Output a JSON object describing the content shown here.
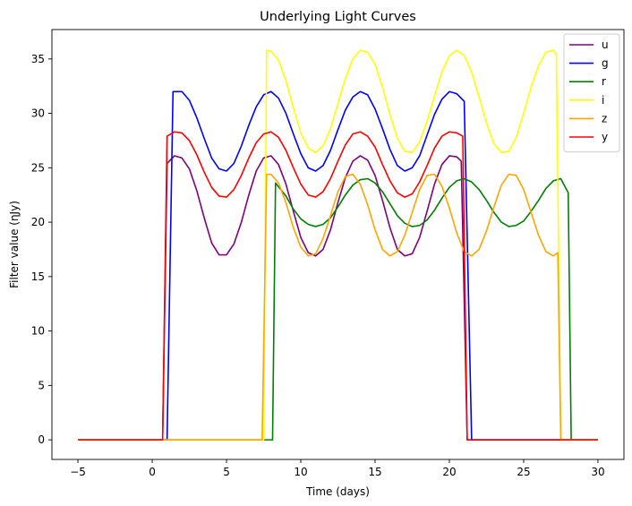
{
  "chart_data": {
    "type": "line",
    "title": "Underlying Light Curves",
    "xlabel": "Time (days)",
    "ylabel": "Filter value (ηJy)",
    "xlim": [
      -6.75,
      31.75
    ],
    "ylim": [
      -1.8,
      37.7
    ],
    "xticks": [
      -5,
      0,
      5,
      10,
      15,
      20,
      25,
      30
    ],
    "yticks": [
      0,
      5,
      10,
      15,
      20,
      25,
      30,
      35
    ],
    "grid": false,
    "legend_position": "top-right",
    "series": [
      {
        "name": "u",
        "color": "#800080",
        "points": [
          [
            -5,
            0
          ],
          [
            0.7,
            0
          ],
          [
            1.0,
            25.4
          ],
          [
            1.5,
            26.1
          ],
          [
            2.0,
            25.9
          ],
          [
            2.5,
            24.9
          ],
          [
            3.0,
            22.9
          ],
          [
            3.5,
            20.4
          ],
          [
            4.0,
            18.1
          ],
          [
            4.5,
            17.0
          ],
          [
            5.0,
            17.0
          ],
          [
            5.5,
            18.0
          ],
          [
            6.0,
            20.0
          ],
          [
            6.5,
            22.5
          ],
          [
            7.0,
            24.7
          ],
          [
            7.5,
            25.9
          ],
          [
            8.0,
            26.1
          ],
          [
            8.5,
            25.3
          ],
          [
            9.0,
            23.5
          ],
          [
            9.5,
            21.0
          ],
          [
            10.0,
            18.6
          ],
          [
            10.5,
            17.2
          ],
          [
            11.0,
            16.9
          ],
          [
            11.5,
            17.5
          ],
          [
            12.0,
            19.3
          ],
          [
            12.5,
            21.8
          ],
          [
            13.0,
            24.1
          ],
          [
            13.5,
            25.6
          ],
          [
            14.0,
            26.1
          ],
          [
            14.5,
            25.7
          ],
          [
            15.0,
            24.3
          ],
          [
            15.5,
            22.0
          ],
          [
            16.0,
            19.5
          ],
          [
            16.5,
            17.5
          ],
          [
            17.0,
            16.9
          ],
          [
            17.5,
            17.1
          ],
          [
            18.0,
            18.6
          ],
          [
            18.5,
            21.0
          ],
          [
            19.0,
            23.5
          ],
          [
            19.5,
            25.3
          ],
          [
            20.0,
            26.1
          ],
          [
            20.5,
            26.0
          ],
          [
            20.8,
            25.6
          ],
          [
            21.2,
            0
          ],
          [
            30,
            0
          ]
        ]
      },
      {
        "name": "g",
        "color": "#0000ff",
        "points": [
          [
            -5,
            0
          ],
          [
            1.0,
            0
          ],
          [
            1.4,
            32.0
          ],
          [
            2.0,
            32.0
          ],
          [
            2.5,
            31.2
          ],
          [
            3.0,
            29.6
          ],
          [
            3.5,
            27.7
          ],
          [
            4.0,
            25.9
          ],
          [
            4.5,
            24.9
          ],
          [
            5.0,
            24.7
          ],
          [
            5.5,
            25.4
          ],
          [
            6.0,
            27.0
          ],
          [
            6.5,
            28.9
          ],
          [
            7.0,
            30.6
          ],
          [
            7.5,
            31.7
          ],
          [
            8.0,
            32.0
          ],
          [
            8.5,
            31.4
          ],
          [
            9.0,
            30.0
          ],
          [
            9.5,
            28.1
          ],
          [
            10.0,
            26.3
          ],
          [
            10.5,
            25.0
          ],
          [
            11.0,
            24.7
          ],
          [
            11.5,
            25.2
          ],
          [
            12.0,
            26.6
          ],
          [
            12.5,
            28.5
          ],
          [
            13.0,
            30.3
          ],
          [
            13.5,
            31.5
          ],
          [
            14.0,
            32.0
          ],
          [
            14.5,
            31.7
          ],
          [
            15.0,
            30.4
          ],
          [
            15.5,
            28.6
          ],
          [
            16.0,
            26.7
          ],
          [
            16.5,
            25.2
          ],
          [
            17.0,
            24.7
          ],
          [
            17.5,
            25.0
          ],
          [
            18.0,
            26.1
          ],
          [
            18.5,
            28.0
          ],
          [
            19.0,
            29.9
          ],
          [
            19.5,
            31.3
          ],
          [
            20.0,
            32.0
          ],
          [
            20.5,
            31.8
          ],
          [
            21.0,
            31.1
          ],
          [
            21.5,
            0
          ],
          [
            30,
            0
          ]
        ]
      },
      {
        "name": "r",
        "color": "#008000",
        "points": [
          [
            -5,
            0
          ],
          [
            8.1,
            0
          ],
          [
            8.3,
            23.6
          ],
          [
            9.0,
            22.4
          ],
          [
            9.5,
            21.2
          ],
          [
            10.0,
            20.3
          ],
          [
            10.5,
            19.8
          ],
          [
            11.0,
            19.6
          ],
          [
            11.5,
            19.8
          ],
          [
            12.0,
            20.4
          ],
          [
            12.5,
            21.4
          ],
          [
            13.0,
            22.5
          ],
          [
            13.5,
            23.4
          ],
          [
            14.0,
            23.9
          ],
          [
            14.5,
            24.0
          ],
          [
            15.0,
            23.6
          ],
          [
            15.5,
            22.8
          ],
          [
            16.0,
            21.7
          ],
          [
            16.5,
            20.6
          ],
          [
            17.0,
            19.9
          ],
          [
            17.5,
            19.6
          ],
          [
            18.0,
            19.7
          ],
          [
            18.5,
            20.2
          ],
          [
            19.0,
            21.1
          ],
          [
            19.5,
            22.2
          ],
          [
            20.0,
            23.2
          ],
          [
            20.5,
            23.8
          ],
          [
            21.0,
            24.0
          ],
          [
            21.5,
            23.7
          ],
          [
            22.0,
            23.0
          ],
          [
            22.5,
            22.0
          ],
          [
            23.0,
            20.9
          ],
          [
            23.5,
            20.0
          ],
          [
            24.0,
            19.6
          ],
          [
            24.5,
            19.7
          ],
          [
            25.0,
            20.1
          ],
          [
            25.5,
            21.0
          ],
          [
            26.0,
            22.0
          ],
          [
            26.5,
            23.1
          ],
          [
            27.0,
            23.8
          ],
          [
            27.5,
            24.0
          ],
          [
            28.0,
            22.7
          ],
          [
            28.2,
            0
          ],
          [
            30,
            0
          ]
        ]
      },
      {
        "name": "i",
        "color": "#ffff00",
        "points": [
          [
            -5,
            0
          ],
          [
            7.5,
            0
          ],
          [
            7.7,
            35.8
          ],
          [
            8.0,
            35.7
          ],
          [
            8.5,
            34.9
          ],
          [
            9.0,
            33.0
          ],
          [
            9.5,
            30.5
          ],
          [
            10.0,
            28.2
          ],
          [
            10.5,
            26.8
          ],
          [
            11.0,
            26.4
          ],
          [
            11.5,
            27.0
          ],
          [
            12.0,
            28.6
          ],
          [
            12.5,
            30.9
          ],
          [
            13.0,
            33.2
          ],
          [
            13.5,
            35.0
          ],
          [
            14.0,
            35.8
          ],
          [
            14.5,
            35.6
          ],
          [
            15.0,
            34.5
          ],
          [
            15.5,
            32.4
          ],
          [
            16.0,
            29.9
          ],
          [
            16.5,
            27.7
          ],
          [
            17.0,
            26.5
          ],
          [
            17.5,
            26.4
          ],
          [
            18.0,
            27.4
          ],
          [
            18.5,
            29.3
          ],
          [
            19.0,
            31.6
          ],
          [
            19.5,
            33.8
          ],
          [
            20.0,
            35.3
          ],
          [
            20.5,
            35.8
          ],
          [
            21.0,
            35.3
          ],
          [
            21.5,
            33.8
          ],
          [
            22.0,
            31.5
          ],
          [
            22.5,
            29.1
          ],
          [
            23.0,
            27.2
          ],
          [
            23.5,
            26.4
          ],
          [
            24.0,
            26.5
          ],
          [
            24.5,
            27.8
          ],
          [
            25.0,
            30.0
          ],
          [
            25.5,
            32.4
          ],
          [
            26.0,
            34.4
          ],
          [
            26.5,
            35.6
          ],
          [
            27.0,
            35.8
          ],
          [
            27.2,
            35.4
          ],
          [
            27.5,
            0
          ],
          [
            30,
            0
          ]
        ]
      },
      {
        "name": "z",
        "color": "#ffa500",
        "points": [
          [
            -5,
            0
          ],
          [
            7.4,
            0
          ],
          [
            7.7,
            24.4
          ],
          [
            8.0,
            24.4
          ],
          [
            8.5,
            23.6
          ],
          [
            9.0,
            21.8
          ],
          [
            9.5,
            19.5
          ],
          [
            10.0,
            17.7
          ],
          [
            10.5,
            16.9
          ],
          [
            11.0,
            17.1
          ],
          [
            11.5,
            18.5
          ],
          [
            12.0,
            20.6
          ],
          [
            12.5,
            22.8
          ],
          [
            13.0,
            24.2
          ],
          [
            13.5,
            24.4
          ],
          [
            14.0,
            23.5
          ],
          [
            14.5,
            21.6
          ],
          [
            15.0,
            19.3
          ],
          [
            15.5,
            17.5
          ],
          [
            16.0,
            16.9
          ],
          [
            16.5,
            17.3
          ],
          [
            17.0,
            18.8
          ],
          [
            17.5,
            20.9
          ],
          [
            18.0,
            23.0
          ],
          [
            18.5,
            24.3
          ],
          [
            19.0,
            24.4
          ],
          [
            19.5,
            23.3
          ],
          [
            20.0,
            21.3
          ],
          [
            20.5,
            19.0
          ],
          [
            21.0,
            17.3
          ],
          [
            21.5,
            16.9
          ],
          [
            22.0,
            17.5
          ],
          [
            22.5,
            19.2
          ],
          [
            23.0,
            21.4
          ],
          [
            23.5,
            23.4
          ],
          [
            24.0,
            24.4
          ],
          [
            24.5,
            24.3
          ],
          [
            25.0,
            23.0
          ],
          [
            25.5,
            20.9
          ],
          [
            26.0,
            18.8
          ],
          [
            26.5,
            17.3
          ],
          [
            27.0,
            16.9
          ],
          [
            27.3,
            17.2
          ],
          [
            27.5,
            0
          ],
          [
            30,
            0
          ]
        ]
      },
      {
        "name": "y",
        "color": "#ff0000",
        "points": [
          [
            -5,
            0
          ],
          [
            0.7,
            0
          ],
          [
            1.0,
            27.9
          ],
          [
            1.5,
            28.3
          ],
          [
            2.0,
            28.2
          ],
          [
            2.5,
            27.5
          ],
          [
            3.0,
            26.2
          ],
          [
            3.5,
            24.6
          ],
          [
            4.0,
            23.2
          ],
          [
            4.5,
            22.4
          ],
          [
            5.0,
            22.3
          ],
          [
            5.5,
            23.0
          ],
          [
            6.0,
            24.3
          ],
          [
            6.5,
            25.9
          ],
          [
            7.0,
            27.3
          ],
          [
            7.5,
            28.1
          ],
          [
            8.0,
            28.3
          ],
          [
            8.5,
            27.8
          ],
          [
            9.0,
            26.6
          ],
          [
            9.5,
            25.0
          ],
          [
            10.0,
            23.5
          ],
          [
            10.5,
            22.5
          ],
          [
            11.0,
            22.3
          ],
          [
            11.5,
            22.8
          ],
          [
            12.0,
            24.0
          ],
          [
            12.5,
            25.6
          ],
          [
            13.0,
            27.1
          ],
          [
            13.5,
            28.1
          ],
          [
            14.0,
            28.3
          ],
          [
            14.5,
            27.9
          ],
          [
            15.0,
            26.9
          ],
          [
            15.5,
            25.3
          ],
          [
            16.0,
            23.8
          ],
          [
            16.5,
            22.7
          ],
          [
            17.0,
            22.3
          ],
          [
            17.5,
            22.6
          ],
          [
            18.0,
            23.7
          ],
          [
            18.5,
            25.2
          ],
          [
            19.0,
            26.8
          ],
          [
            19.5,
            27.9
          ],
          [
            20.0,
            28.3
          ],
          [
            20.5,
            28.2
          ],
          [
            20.9,
            27.9
          ],
          [
            21.2,
            0
          ],
          [
            30,
            0
          ]
        ]
      }
    ]
  }
}
